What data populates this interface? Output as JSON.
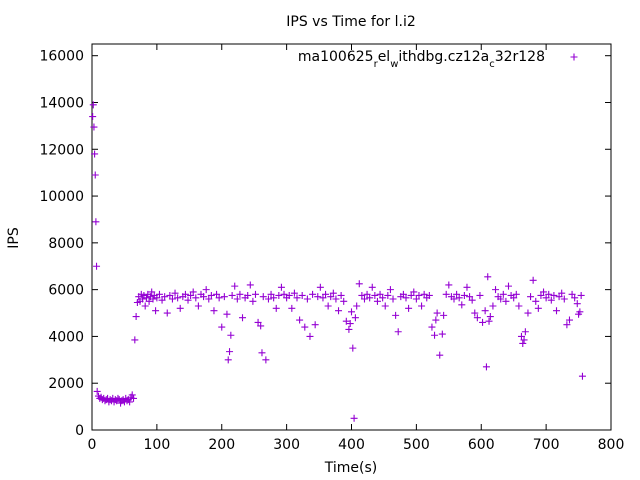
{
  "chart_data": {
    "type": "scatter",
    "title": "IPS vs Time for l.i2",
    "xlabel": "Time(s)",
    "ylabel": "IPS",
    "xlim": [
      0,
      800
    ],
    "ylim": [
      0,
      16500
    ],
    "xticks": [
      0,
      100,
      200,
      300,
      400,
      500,
      600,
      700,
      800
    ],
    "yticks": [
      0,
      2000,
      4000,
      6000,
      8000,
      10000,
      12000,
      14000,
      16000
    ],
    "grid": false,
    "legend": {
      "placement": "top-right",
      "label_parts": [
        "ma100625",
        "r",
        "el",
        "w",
        "ithdbg.cz12a",
        "c",
        "32r128"
      ],
      "label_subscript": [
        false,
        true,
        false,
        true,
        false,
        true,
        false
      ]
    },
    "series": [
      {
        "name": "ma100625_rel_withdbg.cz12a_c32r128",
        "color": "#9400d3",
        "points": [
          [
            1,
            13400
          ],
          [
            2,
            13900
          ],
          [
            3,
            12950
          ],
          [
            4,
            11800
          ],
          [
            5,
            10900
          ],
          [
            6,
            8900
          ],
          [
            7,
            7000
          ],
          [
            8,
            1650
          ],
          [
            10,
            1450
          ],
          [
            12,
            1350
          ],
          [
            14,
            1400
          ],
          [
            16,
            1300
          ],
          [
            18,
            1350
          ],
          [
            20,
            1250
          ],
          [
            22,
            1300
          ],
          [
            24,
            1350
          ],
          [
            26,
            1200
          ],
          [
            28,
            1300
          ],
          [
            30,
            1250
          ],
          [
            32,
            1350
          ],
          [
            34,
            1200
          ],
          [
            36,
            1300
          ],
          [
            38,
            1250
          ],
          [
            40,
            1350
          ],
          [
            42,
            1300
          ],
          [
            44,
            1150
          ],
          [
            46,
            1250
          ],
          [
            48,
            1300
          ],
          [
            50,
            1200
          ],
          [
            52,
            1350
          ],
          [
            54,
            1250
          ],
          [
            56,
            1300
          ],
          [
            58,
            1200
          ],
          [
            60,
            1400
          ],
          [
            62,
            1500
          ],
          [
            64,
            1350
          ],
          [
            66,
            3850
          ],
          [
            68,
            4850
          ],
          [
            70,
            5450
          ],
          [
            72,
            5700
          ],
          [
            74,
            5500
          ],
          [
            76,
            5800
          ],
          [
            78,
            5600
          ],
          [
            80,
            5750
          ],
          [
            82,
            5300
          ],
          [
            84,
            5650
          ],
          [
            86,
            5800
          ],
          [
            88,
            5500
          ],
          [
            90,
            5700
          ],
          [
            92,
            5900
          ],
          [
            94,
            5600
          ],
          [
            96,
            5750
          ],
          [
            98,
            5100
          ],
          [
            100,
            5650
          ],
          [
            104,
            5800
          ],
          [
            108,
            5550
          ],
          [
            112,
            5700
          ],
          [
            116,
            5000
          ],
          [
            120,
            5750
          ],
          [
            124,
            5600
          ],
          [
            128,
            5850
          ],
          [
            132,
            5650
          ],
          [
            136,
            5200
          ],
          [
            140,
            5700
          ],
          [
            144,
            5800
          ],
          [
            148,
            5550
          ],
          [
            152,
            5750
          ],
          [
            156,
            5900
          ],
          [
            160,
            5650
          ],
          [
            164,
            5300
          ],
          [
            168,
            5800
          ],
          [
            172,
            5700
          ],
          [
            176,
            6000
          ],
          [
            180,
            5600
          ],
          [
            184,
            5750
          ],
          [
            188,
            5100
          ],
          [
            192,
            5800
          ],
          [
            196,
            5650
          ],
          [
            200,
            4400
          ],
          [
            204,
            5700
          ],
          [
            208,
            4950
          ],
          [
            210,
            3000
          ],
          [
            212,
            3350
          ],
          [
            214,
            4050
          ],
          [
            216,
            5750
          ],
          [
            220,
            6150
          ],
          [
            224,
            5600
          ],
          [
            228,
            5800
          ],
          [
            232,
            4800
          ],
          [
            236,
            5650
          ],
          [
            240,
            5750
          ],
          [
            244,
            6200
          ],
          [
            248,
            5500
          ],
          [
            252,
            5800
          ],
          [
            256,
            4600
          ],
          [
            260,
            4450
          ],
          [
            262,
            3300
          ],
          [
            264,
            5700
          ],
          [
            268,
            3000
          ],
          [
            272,
            5600
          ],
          [
            276,
            5800
          ],
          [
            280,
            5650
          ],
          [
            284,
            5200
          ],
          [
            288,
            5750
          ],
          [
            292,
            6100
          ],
          [
            296,
            5800
          ],
          [
            300,
            5650
          ],
          [
            304,
            5750
          ],
          [
            308,
            5200
          ],
          [
            312,
            5850
          ],
          [
            316,
            5650
          ],
          [
            320,
            4700
          ],
          [
            324,
            5750
          ],
          [
            328,
            4400
          ],
          [
            332,
            5600
          ],
          [
            336,
            4000
          ],
          [
            340,
            5800
          ],
          [
            344,
            4500
          ],
          [
            348,
            5700
          ],
          [
            352,
            6100
          ],
          [
            356,
            5650
          ],
          [
            360,
            5800
          ],
          [
            364,
            5300
          ],
          [
            368,
            5700
          ],
          [
            372,
            5850
          ],
          [
            376,
            5600
          ],
          [
            380,
            5100
          ],
          [
            384,
            5750
          ],
          [
            388,
            5500
          ],
          [
            392,
            4650
          ],
          [
            396,
            4300
          ],
          [
            398,
            4550
          ],
          [
            400,
            5050
          ],
          [
            402,
            3500
          ],
          [
            404,
            500
          ],
          [
            406,
            4800
          ],
          [
            408,
            5300
          ],
          [
            412,
            6250
          ],
          [
            416,
            5750
          ],
          [
            420,
            5600
          ],
          [
            424,
            5800
          ],
          [
            428,
            5650
          ],
          [
            432,
            6100
          ],
          [
            436,
            5750
          ],
          [
            440,
            5500
          ],
          [
            444,
            5800
          ],
          [
            448,
            5650
          ],
          [
            452,
            5300
          ],
          [
            456,
            5750
          ],
          [
            460,
            6000
          ],
          [
            464,
            5600
          ],
          [
            468,
            4900
          ],
          [
            472,
            4200
          ],
          [
            476,
            5700
          ],
          [
            480,
            5800
          ],
          [
            484,
            5650
          ],
          [
            488,
            5200
          ],
          [
            492,
            5750
          ],
          [
            496,
            5900
          ],
          [
            500,
            5600
          ],
          [
            504,
            5750
          ],
          [
            508,
            5300
          ],
          [
            512,
            5800
          ],
          [
            516,
            5650
          ],
          [
            520,
            5750
          ],
          [
            524,
            4400
          ],
          [
            528,
            4050
          ],
          [
            530,
            4700
          ],
          [
            532,
            5000
          ],
          [
            536,
            3200
          ],
          [
            540,
            4100
          ],
          [
            542,
            4900
          ],
          [
            546,
            5800
          ],
          [
            550,
            6200
          ],
          [
            554,
            5700
          ],
          [
            558,
            5600
          ],
          [
            562,
            5800
          ],
          [
            566,
            5650
          ],
          [
            570,
            5350
          ],
          [
            574,
            5750
          ],
          [
            578,
            6100
          ],
          [
            582,
            5700
          ],
          [
            586,
            5550
          ],
          [
            590,
            5000
          ],
          [
            594,
            4800
          ],
          [
            598,
            5750
          ],
          [
            602,
            4600
          ],
          [
            606,
            5100
          ],
          [
            608,
            2700
          ],
          [
            610,
            6550
          ],
          [
            612,
            4650
          ],
          [
            614,
            4850
          ],
          [
            618,
            5300
          ],
          [
            622,
            6000
          ],
          [
            626,
            5700
          ],
          [
            630,
            5600
          ],
          [
            634,
            5800
          ],
          [
            638,
            5500
          ],
          [
            642,
            6150
          ],
          [
            646,
            5750
          ],
          [
            650,
            5650
          ],
          [
            654,
            5800
          ],
          [
            658,
            5300
          ],
          [
            662,
            4000
          ],
          [
            664,
            3700
          ],
          [
            666,
            3850
          ],
          [
            668,
            4200
          ],
          [
            672,
            5000
          ],
          [
            676,
            5700
          ],
          [
            680,
            6400
          ],
          [
            684,
            5500
          ],
          [
            688,
            5200
          ],
          [
            692,
            5750
          ],
          [
            696,
            5900
          ],
          [
            700,
            5650
          ],
          [
            704,
            5800
          ],
          [
            708,
            5550
          ],
          [
            712,
            5750
          ],
          [
            716,
            5100
          ],
          [
            720,
            5700
          ],
          [
            724,
            5850
          ],
          [
            728,
            5600
          ],
          [
            732,
            4500
          ],
          [
            736,
            4700
          ],
          [
            740,
            5800
          ],
          [
            744,
            5650
          ],
          [
            748,
            5400
          ],
          [
            750,
            4950
          ],
          [
            752,
            5050
          ],
          [
            754,
            5750
          ],
          [
            756,
            2300
          ]
        ]
      }
    ]
  }
}
